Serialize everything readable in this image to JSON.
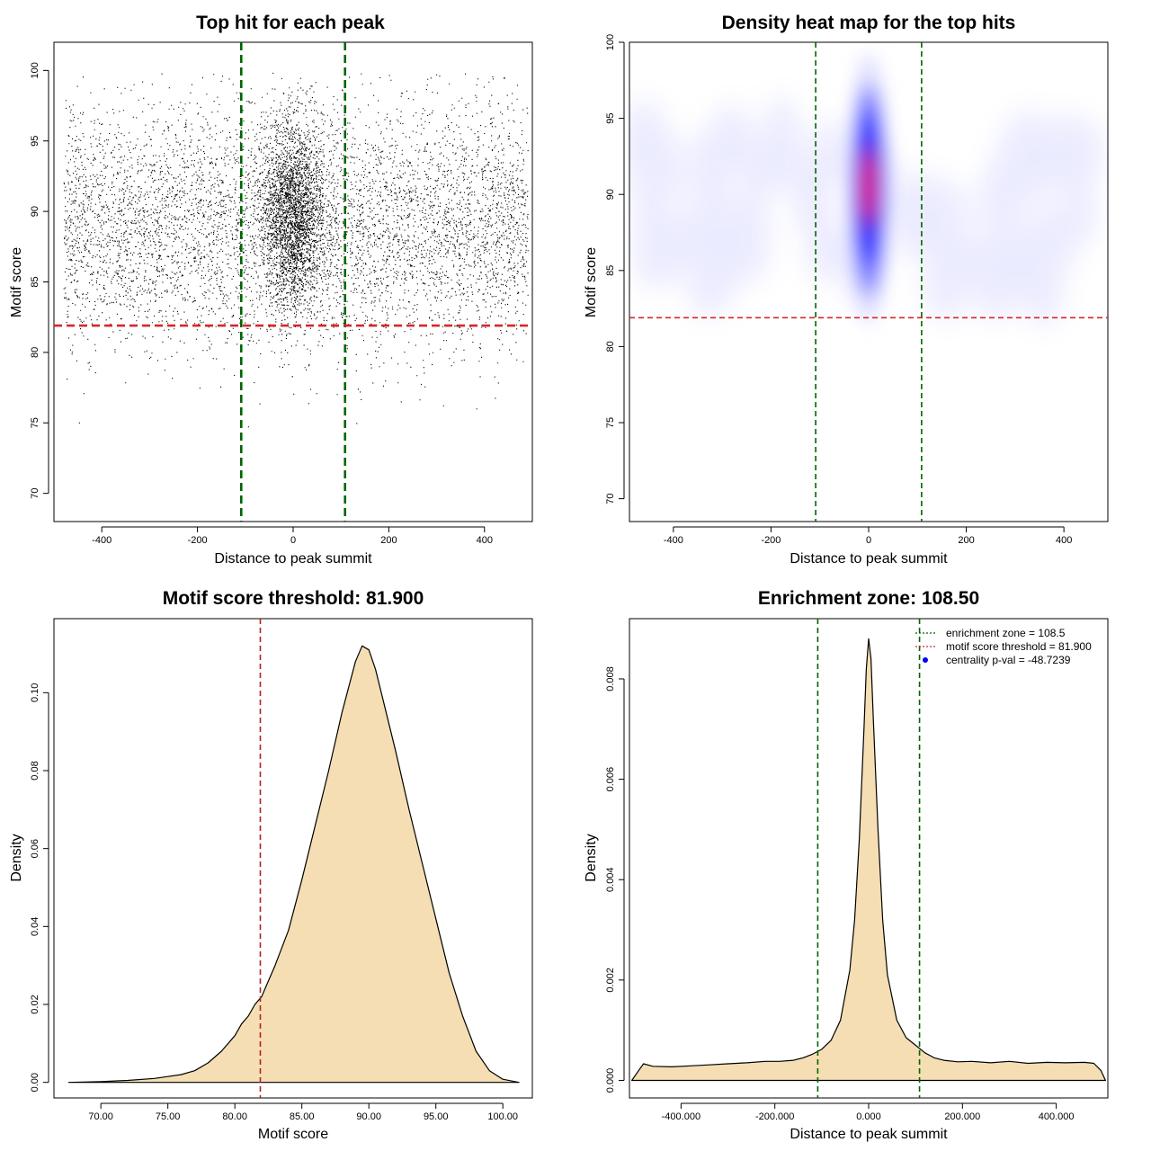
{
  "chart_data": [
    {
      "type": "scatter",
      "title": "Top hit for each peak",
      "xlabel": "Distance to peak summit",
      "ylabel": "Motif score",
      "xlim": [
        -500,
        500
      ],
      "ylim": [
        68,
        102
      ],
      "xticks": [
        -400,
        -200,
        0,
        200,
        400
      ],
      "yticks": [
        70,
        75,
        80,
        85,
        90,
        95,
        100
      ],
      "background_points": {
        "x_range": [
          -480,
          490
        ],
        "y_mean": 89.0,
        "y_sd": 4.2,
        "approx_count": 6000
      },
      "central_points": {
        "x_mean": 0,
        "x_sd": 32,
        "y_mean": 89.8,
        "y_sd": 3.2,
        "approx_count": 14000
      },
      "hlines": [
        81.9
      ],
      "vlines": [
        -108.5,
        108.5
      ],
      "hline_color": "#d62728",
      "vline_color": "#006400"
    },
    {
      "type": "heatmap",
      "title": "Density heat map for the top hits",
      "xlabel": "Distance to peak summit",
      "ylabel": "Motif score",
      "xlim": [
        -490,
        490
      ],
      "ylim": [
        68.5,
        100
      ],
      "xticks": [
        -400,
        -200,
        0,
        200,
        400
      ],
      "yticks": [
        70,
        75,
        80,
        85,
        90,
        95,
        100
      ],
      "hotspot": {
        "x": 0,
        "y": 90.5
      },
      "colors": [
        "#ffffff",
        "#0000ff",
        "#ff0000"
      ],
      "hlines": [
        81.9
      ],
      "vlines": [
        -108.5,
        108.5
      ],
      "hline_color": "#d62728",
      "vline_color": "#006400"
    },
    {
      "type": "area",
      "title": "Motif score threshold: 81.900",
      "xlabel": "Motif score",
      "ylabel": "Density",
      "xlim": [
        66.5,
        102.2
      ],
      "ylim": [
        -0.004,
        0.119
      ],
      "xticks": [
        70,
        75,
        80,
        85,
        90,
        95,
        100
      ],
      "yticks": [
        0.0,
        0.02,
        0.04,
        0.06,
        0.08,
        0.1
      ],
      "x": [
        67.6,
        70,
        72,
        74,
        75,
        76,
        77,
        78,
        79,
        80,
        80.5,
        81,
        81.5,
        82,
        82.5,
        83,
        84,
        85,
        86,
        87,
        88,
        89,
        89.5,
        90,
        90.5,
        91,
        92,
        93,
        94,
        95,
        96,
        97,
        98,
        99,
        100,
        101.2
      ],
      "values": [
        0.0,
        0.0002,
        0.0005,
        0.001,
        0.0015,
        0.002,
        0.003,
        0.005,
        0.008,
        0.012,
        0.015,
        0.017,
        0.02,
        0.022,
        0.026,
        0.03,
        0.039,
        0.052,
        0.066,
        0.08,
        0.095,
        0.108,
        0.112,
        0.111,
        0.106,
        0.099,
        0.085,
        0.07,
        0.056,
        0.042,
        0.028,
        0.017,
        0.008,
        0.003,
        0.0008,
        0.0
      ],
      "fill": "#f5deb3",
      "vlines": [
        81.9
      ],
      "vline_color": "#b22222"
    },
    {
      "type": "area",
      "title": "Enrichment zone: 108.50",
      "xlabel": "Distance to peak summit",
      "ylabel": "Density",
      "xlim": [
        -510,
        510
      ],
      "ylim": [
        -0.00035,
        0.0092
      ],
      "xticks": [
        -400,
        -200,
        0,
        200,
        400
      ],
      "yticks": [
        0.0,
        0.002,
        0.004,
        0.006,
        0.008
      ],
      "x": [
        -505,
        -490,
        -480,
        -460,
        -420,
        -380,
        -340,
        -300,
        -260,
        -220,
        -190,
        -160,
        -140,
        -120,
        -100,
        -80,
        -60,
        -40,
        -30,
        -20,
        -10,
        -5,
        0,
        5,
        10,
        20,
        30,
        40,
        60,
        80,
        100,
        120,
        140,
        160,
        190,
        220,
        260,
        300,
        340,
        380,
        420,
        460,
        480,
        495,
        505
      ],
      "values": [
        0.0,
        0.0002,
        0.00033,
        0.00028,
        0.00027,
        0.00029,
        0.00031,
        0.00033,
        0.00035,
        0.00038,
        0.00038,
        0.0004,
        0.00045,
        0.00052,
        0.00062,
        0.0008,
        0.0012,
        0.0022,
        0.0032,
        0.0048,
        0.007,
        0.0082,
        0.0088,
        0.0084,
        0.0072,
        0.005,
        0.0032,
        0.0021,
        0.0012,
        0.00085,
        0.0007,
        0.00055,
        0.00045,
        0.0004,
        0.00037,
        0.00038,
        0.00035,
        0.00038,
        0.00034,
        0.00036,
        0.00035,
        0.00036,
        0.00034,
        0.0002,
        0.0
      ],
      "fill": "#f5deb3",
      "vlines": [
        -108.5,
        108.5
      ],
      "vline_color": "#006400",
      "legend_position": "top-right",
      "legend": [
        {
          "label": "enrichment zone = 108.5",
          "marker": "dotted-line",
          "color": "#006400"
        },
        {
          "label": "motif score threshold = 81.900",
          "marker": "dotted-line",
          "color": "#d62728"
        },
        {
          "label": "centrality p-val = -48.7239",
          "marker": "dot",
          "color": "#0000ff"
        }
      ]
    }
  ]
}
